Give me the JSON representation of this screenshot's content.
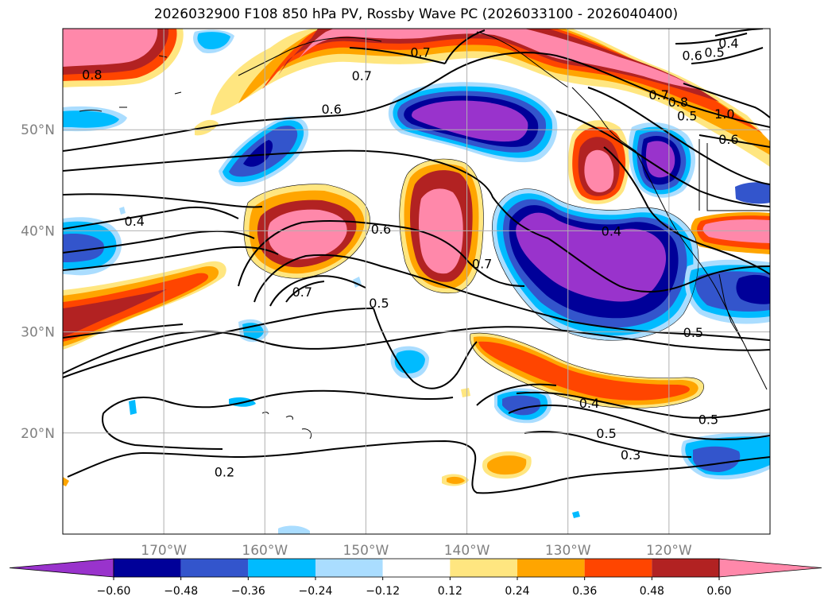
{
  "title": "2026032900 F108 850 hPa PV, Rossby Wave PC (2026033100 - 2026040400)",
  "map": {
    "lon_range": [
      -180,
      -110
    ],
    "lat_range": [
      10,
      60
    ],
    "lon_ticks": [
      {
        "lon": -170,
        "label": "170°W"
      },
      {
        "lon": -160,
        "label": "160°W"
      },
      {
        "lon": -150,
        "label": "150°W"
      },
      {
        "lon": -140,
        "label": "140°W"
      },
      {
        "lon": -130,
        "label": "130°W"
      },
      {
        "lon": -120,
        "label": "120°W"
      }
    ],
    "lat_ticks": [
      {
        "lat": 20,
        "label": "20°N"
      },
      {
        "lat": 30,
        "label": "30°N"
      },
      {
        "lat": 40,
        "label": "40°N"
      },
      {
        "lat": 50,
        "label": "50°N"
      }
    ],
    "gridlines": true
  },
  "contour_labels": [
    {
      "text": "0.8",
      "lon": -177.1,
      "lat": 55.4
    },
    {
      "text": "0.7",
      "lon": -150.4,
      "lat": 55.3
    },
    {
      "text": "0.7",
      "lon": -144.6,
      "lat": 57.6
    },
    {
      "text": "0.6",
      "lon": -153.4,
      "lat": 52.0
    },
    {
      "text": "0.6",
      "lon": -117.7,
      "lat": 57.3
    },
    {
      "text": "0.5",
      "lon": -115.5,
      "lat": 57.6
    },
    {
      "text": "0.4",
      "lon": -114.1,
      "lat": 58.5
    },
    {
      "text": "0.7",
      "lon": -121.0,
      "lat": 53.4
    },
    {
      "text": "0.8",
      "lon": -119.1,
      "lat": 52.7
    },
    {
      "text": "1.0",
      "lon": -114.5,
      "lat": 51.5
    },
    {
      "text": "0.5",
      "lon": -118.2,
      "lat": 51.3
    },
    {
      "text": "0.6",
      "lon": -114.1,
      "lat": 49.0
    },
    {
      "text": "0.4",
      "lon": -172.9,
      "lat": 40.9
    },
    {
      "text": "0.6",
      "lon": -148.5,
      "lat": 40.1
    },
    {
      "text": "0.7",
      "lon": -156.3,
      "lat": 33.9
    },
    {
      "text": "0.5",
      "lon": -148.7,
      "lat": 32.8
    },
    {
      "text": "0.7",
      "lon": -138.5,
      "lat": 36.7
    },
    {
      "text": "0.4",
      "lon": -125.7,
      "lat": 39.9
    },
    {
      "text": "0.5",
      "lon": -117.6,
      "lat": 29.9
    },
    {
      "text": "0.4",
      "lon": -127.9,
      "lat": 22.9
    },
    {
      "text": "0.5",
      "lon": -116.1,
      "lat": 21.3
    },
    {
      "text": "0.5",
      "lon": -126.2,
      "lat": 19.9
    },
    {
      "text": "0.3",
      "lon": -123.8,
      "lat": 17.8
    },
    {
      "text": "0.2",
      "lon": -164.0,
      "lat": 16.1
    }
  ],
  "colorbar": {
    "levels": [
      -0.6,
      -0.48,
      -0.36,
      -0.24,
      -0.12,
      0.12,
      0.24,
      0.36,
      0.48,
      0.6
    ],
    "tick_labels": [
      "−0.60",
      "−0.48",
      "−0.36",
      "−0.24",
      "−0.12",
      "0.12",
      "0.24",
      "0.36",
      "0.48",
      "0.60"
    ],
    "colors": [
      "#9933cc",
      "#000099",
      "#3355cc",
      "#00bbff",
      "#aaddff",
      "#ffffff",
      "#ffe680",
      "#ffa500",
      "#ff4500",
      "#b22222",
      "#ff88aa"
    ],
    "extend": "both"
  }
}
